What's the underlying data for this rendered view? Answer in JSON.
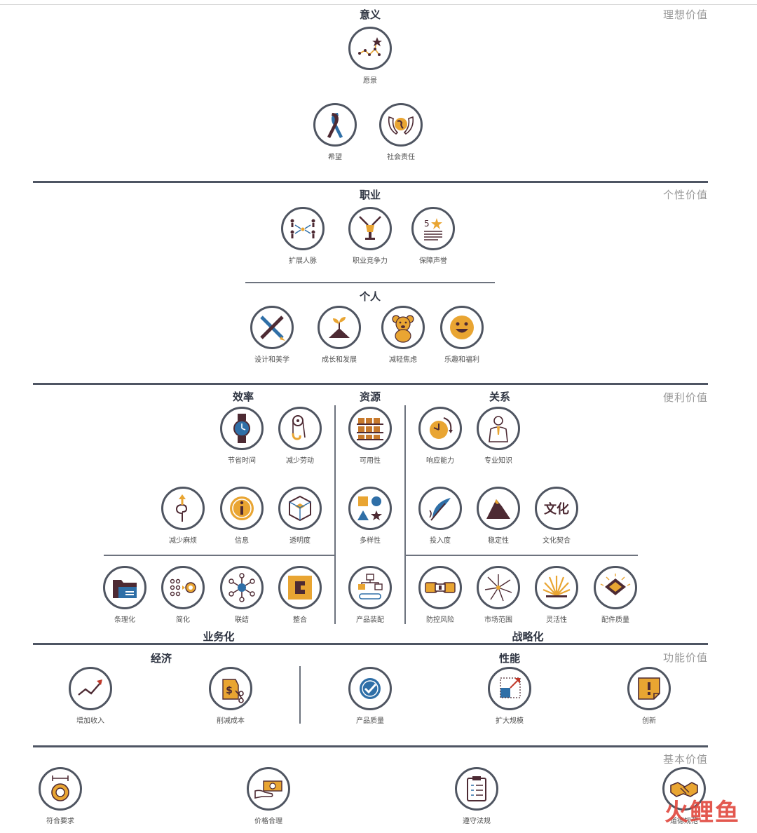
{
  "tiers": {
    "t1": "理想价值",
    "t2": "个性价值",
    "t3": "便利价值",
    "t4": "功能价值",
    "t5": "基本价值"
  },
  "groups": {
    "yiyi": "意义",
    "zhiye": "职业",
    "geren": "个人",
    "xiaolv": "效率",
    "ziyuan": "资源",
    "guanxi": "关系",
    "yewuhua": "业务化",
    "zhanluehua": "战略化",
    "jingji": "经济",
    "xingneng": "性能"
  },
  "items": {
    "yuanjing": {
      "label": "愿景",
      "icon": "constellation-icon"
    },
    "xiwang": {
      "label": "希望",
      "icon": "ribbon-icon"
    },
    "shehui": {
      "label": "社会责任",
      "icon": "hands-globe-icon"
    },
    "renmai": {
      "label": "扩展人脉",
      "icon": "network-people-icon"
    },
    "jingzheng": {
      "label": "职业竞争力",
      "icon": "trophy-icon"
    },
    "shengyu": {
      "label": "保障声誉",
      "icon": "star-document-icon"
    },
    "sheji": {
      "label": "设计和美学",
      "icon": "pencil-brush-icon"
    },
    "chengzhang": {
      "label": "成长和发展",
      "icon": "sprout-icon"
    },
    "jiaolv": {
      "label": "减轻焦虑",
      "icon": "teddy-bear-icon"
    },
    "leqv": {
      "label": "乐趣和福利",
      "icon": "smiley-icon"
    },
    "shijian": {
      "label": "节省时间",
      "icon": "watch-icon"
    },
    "laodong": {
      "label": "减少劳动",
      "icon": "pulley-icon"
    },
    "kyx": {
      "label": "可用性",
      "icon": "shelves-icon"
    },
    "xiangying": {
      "label": "响应能力",
      "icon": "clock-icon"
    },
    "zhuanye": {
      "label": "专业知识",
      "icon": "expert-icon"
    },
    "mafan": {
      "label": "减少麻烦",
      "icon": "swirl-arrow-icon"
    },
    "xinxi": {
      "label": "信息",
      "icon": "info-icon"
    },
    "toumingdu": {
      "label": "透明度",
      "icon": "cube-icon"
    },
    "duoyang": {
      "label": "多样性",
      "icon": "shapes-icon"
    },
    "touru": {
      "label": "投入度",
      "icon": "quill-icon"
    },
    "wending": {
      "label": "稳定性",
      "icon": "mountain-icon"
    },
    "wenhua": {
      "label": "文化契合",
      "icon": "culture-text-icon",
      "glyph": "文化"
    },
    "tiaoli": {
      "label": "条理化",
      "icon": "folder-icon"
    },
    "jianhua": {
      "label": "简化",
      "icon": "dots-target-icon"
    },
    "lianjie": {
      "label": "联结",
      "icon": "hub-icon"
    },
    "zhenghe": {
      "label": "整合",
      "icon": "puzzle-icon"
    },
    "zhuangpei": {
      "label": "产品装配",
      "icon": "assembly-icon"
    },
    "fengxian": {
      "label": "防控风险",
      "icon": "seatbelt-icon"
    },
    "shichang": {
      "label": "市场范围",
      "icon": "starburst-icon"
    },
    "linghuo": {
      "label": "灵活性",
      "icon": "flex-rays-icon"
    },
    "peijian": {
      "label": "配件质量",
      "icon": "chip-icon"
    },
    "shouru": {
      "label": "增加收入",
      "icon": "trend-up-icon"
    },
    "chengben": {
      "label": "削减成本",
      "icon": "price-tag-scissors-icon"
    },
    "zhiliang": {
      "label": "产品质量",
      "icon": "check-badge-icon"
    },
    "guimo": {
      "label": "扩大规模",
      "icon": "scale-up-icon"
    },
    "chuangxin": {
      "label": "创新",
      "icon": "note-alert-icon"
    },
    "yaoqiu": {
      "label": "符合要求",
      "icon": "measure-coin-icon"
    },
    "jiage": {
      "label": "价格合理",
      "icon": "cash-hand-icon"
    },
    "fagui": {
      "label": "遵守法规",
      "icon": "clipboard-icon"
    },
    "dao": {
      "label": "道德规范",
      "icon": "handshake-icon"
    }
  },
  "watermark": "火鲤鱼",
  "colors": {
    "gold": "#e9a532",
    "plum": "#4d2a33",
    "blue": "#2f6fa7",
    "ring": "#4f5561",
    "rule": "#4e5563"
  }
}
